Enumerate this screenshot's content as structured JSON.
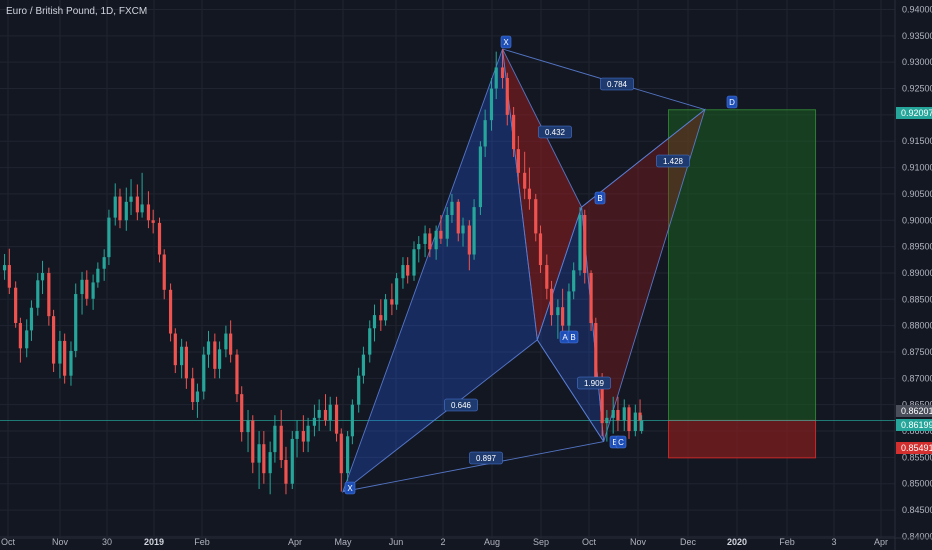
{
  "title": "Euro / British Pound, 1D, FXCM",
  "colors": {
    "background": "#131722",
    "grid": "#1f2430",
    "up": "#26a69a",
    "down": "#ef5350",
    "pattern_blue": "#2962ff",
    "pattern_red": "#b71c1c",
    "target_zone": "#1b5e20",
    "stop_zone": "#7f1d1d",
    "current_line": "#26a69a"
  },
  "chart_data": {
    "type": "candlestick",
    "title": "Euro / British Pound, 1D, FXCM",
    "x_ticks": [
      "Oct",
      "Nov",
      "30",
      "2019",
      "Feb",
      "Apr",
      "May",
      "Jun",
      "2",
      "Aug",
      "Sep",
      "Oct",
      "Nov",
      "Dec",
      "2020",
      "Feb",
      "3",
      "Apr"
    ],
    "x_ticks_bold": [
      "2019",
      "2020"
    ],
    "y_ticks": [
      "0.94000",
      "0.93500",
      "0.93000",
      "0.92500",
      "0.92000",
      "0.91500",
      "0.91000",
      "0.90500",
      "0.90000",
      "0.89500",
      "0.89000",
      "0.88500",
      "0.88000",
      "0.87500",
      "0.87000",
      "0.86500",
      "0.86000",
      "0.85500",
      "0.85000",
      "0.84500",
      "0.84000"
    ],
    "ylim": [
      0.8397,
      0.9418
    ],
    "price_badges": [
      {
        "label": "0.92097",
        "price": 0.92097,
        "color": "#26a69a"
      },
      {
        "label": "0.86201",
        "price": 0.86201,
        "color": "#4a4e5a"
      },
      {
        "label": "0.86199",
        "price": 0.86199,
        "color": "#26a69a"
      },
      {
        "label": "0.85491",
        "price": 0.85491,
        "color": "#d32f2f"
      }
    ],
    "pattern_points": [
      {
        "label": "X",
        "date": "2019-05-03",
        "price": 0.8485
      },
      {
        "label": "X",
        "date": "2019-08-12",
        "price": 0.9325
      },
      {
        "label": "A",
        "date": "2019-09-03",
        "price": 0.8773
      },
      {
        "label": "B",
        "date": "2019-09-05",
        "price": 0.8773
      },
      {
        "label": "B",
        "date": "2019-10-01",
        "price": 0.9025
      },
      {
        "label": "E",
        "date": "2019-10-15",
        "price": 0.858
      },
      {
        "label": "C",
        "date": "2019-10-17",
        "price": 0.858
      },
      {
        "label": "D",
        "date": "2019-12-18",
        "price": 0.921
      }
    ],
    "ratios": [
      "0.784",
      "0.432",
      "1.428",
      "0.646",
      "1.909",
      "0.897"
    ],
    "position": {
      "entry": 0.86201,
      "target": 0.92097,
      "stop": 0.85491,
      "start": "2019-11-25",
      "end": "2020-02-26"
    },
    "candles": [
      {
        "date": "2018-10-01",
        "open": 0.8905,
        "high": 0.8936,
        "low": 0.8887,
        "close": 0.8915
      },
      {
        "date": "2018-10-04",
        "open": 0.8915,
        "high": 0.8946,
        "low": 0.886,
        "close": 0.8872
      },
      {
        "date": "2018-10-08",
        "open": 0.8872,
        "high": 0.8884,
        "low": 0.8796,
        "close": 0.8805
      },
      {
        "date": "2018-10-11",
        "open": 0.8805,
        "high": 0.8815,
        "low": 0.873,
        "close": 0.8757
      },
      {
        "date": "2018-10-15",
        "open": 0.8757,
        "high": 0.8812,
        "low": 0.874,
        "close": 0.8791
      },
      {
        "date": "2018-10-18",
        "open": 0.8791,
        "high": 0.8848,
        "low": 0.8771,
        "close": 0.8834
      },
      {
        "date": "2018-10-22",
        "open": 0.8834,
        "high": 0.89,
        "low": 0.8819,
        "close": 0.8886
      },
      {
        "date": "2018-10-25",
        "open": 0.8886,
        "high": 0.8923,
        "low": 0.886,
        "close": 0.89
      },
      {
        "date": "2018-10-29",
        "open": 0.89,
        "high": 0.891,
        "low": 0.88,
        "close": 0.8818
      },
      {
        "date": "2018-11-01",
        "open": 0.8818,
        "high": 0.883,
        "low": 0.8712,
        "close": 0.8728
      },
      {
        "date": "2018-11-05",
        "open": 0.8728,
        "high": 0.879,
        "low": 0.87,
        "close": 0.8771
      },
      {
        "date": "2018-11-08",
        "open": 0.8771,
        "high": 0.8785,
        "low": 0.869,
        "close": 0.8705
      },
      {
        "date": "2018-11-12",
        "open": 0.8705,
        "high": 0.877,
        "low": 0.8686,
        "close": 0.8752
      },
      {
        "date": "2018-11-15",
        "open": 0.8752,
        "high": 0.888,
        "low": 0.874,
        "close": 0.886
      },
      {
        "date": "2018-11-19",
        "open": 0.886,
        "high": 0.8902,
        "low": 0.8821,
        "close": 0.8887
      },
      {
        "date": "2018-11-22",
        "open": 0.8887,
        "high": 0.8905,
        "low": 0.8838,
        "close": 0.8851
      },
      {
        "date": "2018-11-26",
        "open": 0.8851,
        "high": 0.8897,
        "low": 0.883,
        "close": 0.8882
      },
      {
        "date": "2018-11-29",
        "open": 0.8882,
        "high": 0.892,
        "low": 0.8872,
        "close": 0.8908
      },
      {
        "date": "2018-12-03",
        "open": 0.8908,
        "high": 0.8945,
        "low": 0.8885,
        "close": 0.893
      },
      {
        "date": "2018-12-06",
        "open": 0.893,
        "high": 0.902,
        "low": 0.8915,
        "close": 0.9005
      },
      {
        "date": "2018-12-10",
        "open": 0.9005,
        "high": 0.907,
        "low": 0.899,
        "close": 0.9045
      },
      {
        "date": "2018-12-13",
        "open": 0.9045,
        "high": 0.906,
        "low": 0.8985,
        "close": 0.9
      },
      {
        "date": "2018-12-17",
        "open": 0.9,
        "high": 0.9062,
        "low": 0.898,
        "close": 0.9035
      },
      {
        "date": "2018-12-20",
        "open": 0.9035,
        "high": 0.9078,
        "low": 0.901,
        "close": 0.9045
      },
      {
        "date": "2018-12-24",
        "open": 0.9045,
        "high": 0.9068,
        "low": 0.9,
        "close": 0.9015
      },
      {
        "date": "2018-12-27",
        "open": 0.9015,
        "high": 0.909,
        "low": 0.9005,
        "close": 0.903
      },
      {
        "date": "2018-12-31",
        "open": 0.903,
        "high": 0.9055,
        "low": 0.8985,
        "close": 0.9
      },
      {
        "date": "2019-01-03",
        "open": 0.9,
        "high": 0.902,
        "low": 0.8975,
        "close": 0.8995
      },
      {
        "date": "2019-01-07",
        "open": 0.8995,
        "high": 0.9005,
        "low": 0.892,
        "close": 0.8935
      },
      {
        "date": "2019-01-10",
        "open": 0.8935,
        "high": 0.8945,
        "low": 0.885,
        "close": 0.8868
      },
      {
        "date": "2019-01-14",
        "open": 0.8868,
        "high": 0.888,
        "low": 0.877,
        "close": 0.8785
      },
      {
        "date": "2019-01-17",
        "open": 0.8785,
        "high": 0.8795,
        "low": 0.871,
        "close": 0.8725
      },
      {
        "date": "2019-01-21",
        "open": 0.8725,
        "high": 0.8775,
        "low": 0.87,
        "close": 0.876
      },
      {
        "date": "2019-01-24",
        "open": 0.876,
        "high": 0.877,
        "low": 0.868,
        "close": 0.87
      },
      {
        "date": "2019-01-28",
        "open": 0.87,
        "high": 0.872,
        "low": 0.864,
        "close": 0.8655
      },
      {
        "date": "2019-01-31",
        "open": 0.8655,
        "high": 0.869,
        "low": 0.8625,
        "close": 0.8675
      },
      {
        "date": "2019-02-04",
        "open": 0.8675,
        "high": 0.876,
        "low": 0.866,
        "close": 0.8745
      },
      {
        "date": "2019-02-07",
        "open": 0.8745,
        "high": 0.879,
        "low": 0.872,
        "close": 0.877
      },
      {
        "date": "2019-02-11",
        "open": 0.877,
        "high": 0.8785,
        "low": 0.87,
        "close": 0.8718
      },
      {
        "date": "2019-02-14",
        "open": 0.8718,
        "high": 0.877,
        "low": 0.87,
        "close": 0.8755
      },
      {
        "date": "2019-02-18",
        "open": 0.8755,
        "high": 0.88,
        "low": 0.874,
        "close": 0.8785
      },
      {
        "date": "2019-02-21",
        "open": 0.8785,
        "high": 0.881,
        "low": 0.873,
        "close": 0.8745
      },
      {
        "date": "2019-02-25",
        "open": 0.8745,
        "high": 0.8755,
        "low": 0.8655,
        "close": 0.867
      },
      {
        "date": "2019-02-28",
        "open": 0.867,
        "high": 0.8685,
        "low": 0.858,
        "close": 0.8598
      },
      {
        "date": "2019-03-04",
        "open": 0.8598,
        "high": 0.864,
        "low": 0.856,
        "close": 0.862
      },
      {
        "date": "2019-03-07",
        "open": 0.862,
        "high": 0.863,
        "low": 0.852,
        "close": 0.854
      },
      {
        "date": "2019-03-11",
        "open": 0.854,
        "high": 0.86,
        "low": 0.849,
        "close": 0.8575
      },
      {
        "date": "2019-03-14",
        "open": 0.8575,
        "high": 0.86,
        "low": 0.85,
        "close": 0.852
      },
      {
        "date": "2019-03-18",
        "open": 0.852,
        "high": 0.858,
        "low": 0.848,
        "close": 0.856
      },
      {
        "date": "2019-03-21",
        "open": 0.856,
        "high": 0.863,
        "low": 0.854,
        "close": 0.861
      },
      {
        "date": "2019-03-25",
        "open": 0.861,
        "high": 0.864,
        "low": 0.853,
        "close": 0.8545
      },
      {
        "date": "2019-03-28",
        "open": 0.8545,
        "high": 0.857,
        "low": 0.848,
        "close": 0.85
      },
      {
        "date": "2019-04-01",
        "open": 0.85,
        "high": 0.86,
        "low": 0.849,
        "close": 0.8585
      },
      {
        "date": "2019-04-04",
        "open": 0.8585,
        "high": 0.862,
        "low": 0.855,
        "close": 0.86
      },
      {
        "date": "2019-04-08",
        "open": 0.86,
        "high": 0.863,
        "low": 0.856,
        "close": 0.858
      },
      {
        "date": "2019-04-11",
        "open": 0.858,
        "high": 0.8625,
        "low": 0.856,
        "close": 0.861
      },
      {
        "date": "2019-04-15",
        "open": 0.861,
        "high": 0.865,
        "low": 0.859,
        "close": 0.8625
      },
      {
        "date": "2019-04-18",
        "open": 0.8625,
        "high": 0.866,
        "low": 0.86,
        "close": 0.864
      },
      {
        "date": "2019-04-22",
        "open": 0.864,
        "high": 0.867,
        "low": 0.861,
        "close": 0.862
      },
      {
        "date": "2019-04-25",
        "open": 0.862,
        "high": 0.8665,
        "low": 0.86,
        "close": 0.865
      },
      {
        "date": "2019-04-29",
        "open": 0.865,
        "high": 0.8665,
        "low": 0.858,
        "close": 0.8595
      },
      {
        "date": "2019-05-02",
        "open": 0.8595,
        "high": 0.8605,
        "low": 0.8485,
        "close": 0.852
      },
      {
        "date": "2019-05-06",
        "open": 0.852,
        "high": 0.86,
        "low": 0.8505,
        "close": 0.859
      },
      {
        "date": "2019-05-09",
        "open": 0.859,
        "high": 0.866,
        "low": 0.8575,
        "close": 0.865
      },
      {
        "date": "2019-05-13",
        "open": 0.865,
        "high": 0.872,
        "low": 0.8635,
        "close": 0.8705
      },
      {
        "date": "2019-05-16",
        "open": 0.8705,
        "high": 0.876,
        "low": 0.869,
        "close": 0.8745
      },
      {
        "date": "2019-05-20",
        "open": 0.8745,
        "high": 0.881,
        "low": 0.873,
        "close": 0.8795
      },
      {
        "date": "2019-05-23",
        "open": 0.8795,
        "high": 0.884,
        "low": 0.877,
        "close": 0.882
      },
      {
        "date": "2019-05-27",
        "open": 0.882,
        "high": 0.885,
        "low": 0.879,
        "close": 0.881
      },
      {
        "date": "2019-05-30",
        "open": 0.881,
        "high": 0.886,
        "low": 0.88,
        "close": 0.885
      },
      {
        "date": "2019-06-03",
        "open": 0.885,
        "high": 0.888,
        "low": 0.882,
        "close": 0.884
      },
      {
        "date": "2019-06-06",
        "open": 0.884,
        "high": 0.89,
        "low": 0.883,
        "close": 0.889
      },
      {
        "date": "2019-06-10",
        "open": 0.889,
        "high": 0.893,
        "low": 0.887,
        "close": 0.8915
      },
      {
        "date": "2019-06-13",
        "open": 0.8915,
        "high": 0.893,
        "low": 0.888,
        "close": 0.8895
      },
      {
        "date": "2019-06-17",
        "open": 0.8895,
        "high": 0.896,
        "low": 0.8885,
        "close": 0.8945
      },
      {
        "date": "2019-06-20",
        "open": 0.8945,
        "high": 0.897,
        "low": 0.892,
        "close": 0.8955
      },
      {
        "date": "2019-06-24",
        "open": 0.8955,
        "high": 0.899,
        "low": 0.893,
        "close": 0.8975
      },
      {
        "date": "2019-06-27",
        "open": 0.8975,
        "high": 0.8985,
        "low": 0.893,
        "close": 0.8945
      },
      {
        "date": "2019-07-01",
        "open": 0.8945,
        "high": 0.899,
        "low": 0.8925,
        "close": 0.898
      },
      {
        "date": "2019-07-04",
        "open": 0.898,
        "high": 0.901,
        "low": 0.8955,
        "close": 0.8965
      },
      {
        "date": "2019-07-08",
        "open": 0.8965,
        "high": 0.9025,
        "low": 0.895,
        "close": 0.901
      },
      {
        "date": "2019-07-11",
        "open": 0.901,
        "high": 0.905,
        "low": 0.8995,
        "close": 0.9035
      },
      {
        "date": "2019-07-15",
        "open": 0.9035,
        "high": 0.904,
        "low": 0.896,
        "close": 0.8975
      },
      {
        "date": "2019-07-18",
        "open": 0.8975,
        "high": 0.9005,
        "low": 0.895,
        "close": 0.899
      },
      {
        "date": "2019-07-22",
        "open": 0.899,
        "high": 0.9,
        "low": 0.8905,
        "close": 0.8935
      },
      {
        "date": "2019-07-25",
        "open": 0.8935,
        "high": 0.904,
        "low": 0.8925,
        "close": 0.9025
      },
      {
        "date": "2019-07-29",
        "open": 0.9025,
        "high": 0.915,
        "low": 0.901,
        "close": 0.914
      },
      {
        "date": "2019-08-01",
        "open": 0.914,
        "high": 0.921,
        "low": 0.912,
        "close": 0.919
      },
      {
        "date": "2019-08-05",
        "open": 0.919,
        "high": 0.927,
        "low": 0.917,
        "close": 0.925
      },
      {
        "date": "2019-08-08",
        "open": 0.925,
        "high": 0.932,
        "low": 0.923,
        "close": 0.929
      },
      {
        "date": "2019-08-12",
        "open": 0.929,
        "high": 0.9325,
        "low": 0.925,
        "close": 0.927
      },
      {
        "date": "2019-08-15",
        "open": 0.927,
        "high": 0.928,
        "low": 0.918,
        "close": 0.92
      },
      {
        "date": "2019-08-19",
        "open": 0.92,
        "high": 0.9215,
        "low": 0.912,
        "close": 0.9135
      },
      {
        "date": "2019-08-22",
        "open": 0.9135,
        "high": 0.916,
        "low": 0.907,
        "close": 0.909
      },
      {
        "date": "2019-08-26",
        "open": 0.909,
        "high": 0.913,
        "low": 0.904,
        "close": 0.906
      },
      {
        "date": "2019-08-29",
        "open": 0.906,
        "high": 0.91,
        "low": 0.902,
        "close": 0.904
      },
      {
        "date": "2019-09-02",
        "open": 0.904,
        "high": 0.905,
        "low": 0.896,
        "close": 0.8975
      },
      {
        "date": "2019-09-05",
        "open": 0.8975,
        "high": 0.899,
        "low": 0.89,
        "close": 0.8915
      },
      {
        "date": "2019-09-09",
        "open": 0.8915,
        "high": 0.8935,
        "low": 0.885,
        "close": 0.887
      },
      {
        "date": "2019-09-12",
        "open": 0.887,
        "high": 0.8885,
        "low": 0.88,
        "close": 0.882
      },
      {
        "date": "2019-09-16",
        "open": 0.882,
        "high": 0.885,
        "low": 0.8775,
        "close": 0.8835
      },
      {
        "date": "2019-09-19",
        "open": 0.8835,
        "high": 0.887,
        "low": 0.879,
        "close": 0.88
      },
      {
        "date": "2019-09-23",
        "open": 0.88,
        "high": 0.888,
        "low": 0.8785,
        "close": 0.8865
      },
      {
        "date": "2019-09-26",
        "open": 0.8865,
        "high": 0.892,
        "low": 0.885,
        "close": 0.8905
      },
      {
        "date": "2019-09-30",
        "open": 0.8905,
        "high": 0.9025,
        "low": 0.8895,
        "close": 0.901
      },
      {
        "date": "2019-10-03",
        "open": 0.901,
        "high": 0.902,
        "low": 0.888,
        "close": 0.89
      },
      {
        "date": "2019-10-07",
        "open": 0.89,
        "high": 0.8905,
        "low": 0.879,
        "close": 0.8805
      },
      {
        "date": "2019-10-10",
        "open": 0.8805,
        "high": 0.8815,
        "low": 0.868,
        "close": 0.87
      },
      {
        "date": "2019-10-14",
        "open": 0.87,
        "high": 0.871,
        "low": 0.859,
        "close": 0.8615
      },
      {
        "date": "2019-10-17",
        "open": 0.8615,
        "high": 0.864,
        "low": 0.858,
        "close": 0.8625
      },
      {
        "date": "2019-10-21",
        "open": 0.8625,
        "high": 0.8665,
        "low": 0.8595,
        "close": 0.864
      },
      {
        "date": "2019-10-24",
        "open": 0.864,
        "high": 0.8665,
        "low": 0.86,
        "close": 0.862
      },
      {
        "date": "2019-10-28",
        "open": 0.862,
        "high": 0.866,
        "low": 0.86,
        "close": 0.8645
      },
      {
        "date": "2019-10-31",
        "open": 0.8645,
        "high": 0.865,
        "low": 0.8585,
        "close": 0.86
      },
      {
        "date": "2019-11-04",
        "open": 0.86,
        "high": 0.865,
        "low": 0.859,
        "close": 0.8635
      },
      {
        "date": "2019-11-07",
        "open": 0.8635,
        "high": 0.866,
        "low": 0.86,
        "close": 0.862
      },
      {
        "date": "2019-11-08",
        "open": 0.86,
        "high": 0.863,
        "low": 0.8595,
        "close": 0.862
      }
    ]
  }
}
